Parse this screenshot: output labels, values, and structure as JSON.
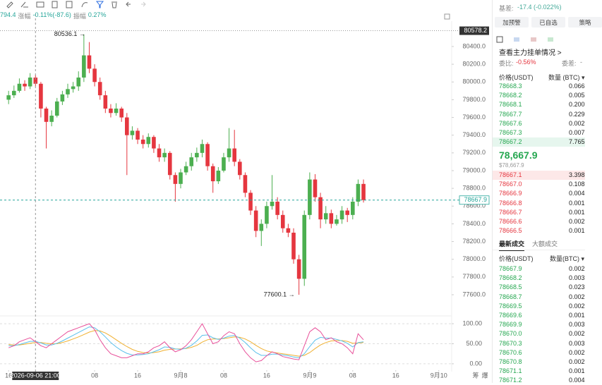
{
  "toolbar": {
    "ohlc_info": {
      "last": "794.4",
      "change_label": "涨幅",
      "change": "-0.11%(-87.6)",
      "amplitude_label": "振幅",
      "amplitude": "0.27%"
    }
  },
  "chart_data": [
    {
      "type": "candlestick",
      "x": [
        16,
        17,
        18,
        19,
        20,
        21,
        22,
        23,
        24,
        25,
        26,
        27,
        28,
        29,
        30,
        31,
        32,
        33,
        34,
        35,
        36,
        37,
        38,
        39,
        40,
        41,
        42,
        43,
        44,
        45,
        46,
        47,
        48,
        49,
        50,
        51,
        52,
        53,
        54,
        55,
        56,
        57,
        58,
        59,
        60,
        61,
        62,
        63,
        64,
        65,
        66,
        67,
        68,
        69,
        70,
        71,
        72,
        73,
        74,
        75,
        76,
        77,
        78,
        79,
        80,
        81,
        82
      ],
      "open": [
        79800,
        79850,
        79900,
        79980,
        79950,
        80050,
        79980,
        79700,
        79550,
        79620,
        79780,
        79860,
        79920,
        79950,
        80050,
        80300,
        80150,
        80000,
        79850,
        79700,
        79650,
        79700,
        79600,
        79400,
        79450,
        79350,
        79300,
        79380,
        79250,
        79150,
        79200,
        78950,
        78850,
        78980,
        79050,
        79150,
        79200,
        79300,
        79050,
        78880,
        79000,
        79150,
        79250,
        79100,
        78950,
        78750,
        78550,
        78320,
        78400,
        78600,
        78650,
        78500,
        78350,
        78300,
        78000,
        77780,
        78500,
        78900,
        78700,
        78450,
        78520,
        78400,
        78450,
        78550,
        78500,
        78650,
        78850
      ],
      "high": [
        79900,
        79960,
        80040,
        80020,
        80100,
        80080,
        80000,
        79720,
        79680,
        79820,
        79900,
        79980,
        80000,
        80120,
        80536.1,
        80450,
        80200,
        80050,
        79900,
        79750,
        79760,
        79720,
        79650,
        79500,
        79480,
        79400,
        79420,
        79400,
        79300,
        79250,
        79220,
        78980,
        79020,
        79100,
        79200,
        79260,
        79350,
        79320,
        79080,
        79040,
        79200,
        79480,
        79460,
        79130,
        78980,
        78780,
        78600,
        78450,
        78650,
        78950,
        78700,
        78550,
        78400,
        78350,
        78050,
        78550,
        78980,
        78960,
        78750,
        78600,
        78560,
        78500,
        78600,
        78580,
        78700,
        78900,
        78900
      ],
      "low": [
        79750,
        79820,
        79880,
        79900,
        79920,
        79950,
        79600,
        79250,
        79500,
        79600,
        79740,
        79820,
        79880,
        79900,
        80000,
        80100,
        79950,
        79800,
        79650,
        79600,
        79620,
        79550,
        78950,
        79350,
        79300,
        79250,
        79260,
        79200,
        79100,
        79100,
        78900,
        78650,
        78800,
        78950,
        79000,
        79100,
        79150,
        79000,
        78750,
        78850,
        78980,
        79100,
        79050,
        78900,
        78700,
        78500,
        78250,
        78150,
        78350,
        78560,
        78450,
        78300,
        78250,
        77950,
        77600.1,
        77700,
        78450,
        78650,
        78350,
        78400,
        78350,
        78380,
        78400,
        78420,
        78450,
        78600,
        78640
      ],
      "close": [
        79850,
        79900,
        79980,
        79950,
        80050,
        79980,
        79700,
        79550,
        79620,
        79780,
        79860,
        79920,
        79950,
        80050,
        80300,
        80150,
        80000,
        79850,
        79700,
        79650,
        79700,
        79600,
        79400,
        79450,
        79350,
        79300,
        79380,
        79250,
        79150,
        79200,
        78950,
        78850,
        78980,
        79050,
        79150,
        79200,
        79300,
        79050,
        78880,
        79000,
        79150,
        79250,
        79100,
        78950,
        78750,
        78550,
        78320,
        78400,
        78600,
        78650,
        78500,
        78350,
        78300,
        78000,
        77780,
        78500,
        78900,
        78700,
        78450,
        78520,
        78400,
        78450,
        78550,
        78500,
        78650,
        78850,
        78667.9
      ],
      "up_color": "#4caf50",
      "down_color": "#e5363f",
      "xlim": [
        14.4,
        98.4
      ],
      "xticks": [
        {
          "value": 16,
          "label": "16"
        },
        {
          "value": 32,
          "label": "08"
        },
        {
          "value": 40,
          "label": "16"
        },
        {
          "value": 48,
          "label": "9月8"
        },
        {
          "value": 56,
          "label": "08"
        },
        {
          "value": 64,
          "label": "16"
        },
        {
          "value": 72,
          "label": "9月9"
        },
        {
          "value": 80,
          "label": "08"
        },
        {
          "value": 88,
          "label": "16"
        },
        {
          "value": 96,
          "label": "9月10"
        }
      ],
      "ylim": [
        77425,
        80686
      ],
      "yticks": [
        {
          "value": 77600,
          "label": "77600.0"
        },
        {
          "value": 77800,
          "label": "77800.0"
        },
        {
          "value": 78000,
          "label": "78000.0"
        },
        {
          "value": 78200,
          "label": "78200.0"
        },
        {
          "value": 78400,
          "label": "78400.0"
        },
        {
          "value": 78600,
          "label": "78600.0"
        },
        {
          "value": 78800,
          "label": "78800.0"
        },
        {
          "value": 79000,
          "label": "79000.0"
        },
        {
          "value": 79200,
          "label": "79200.0"
        },
        {
          "value": 79400,
          "label": "79400.0"
        },
        {
          "value": 79600,
          "label": "79600.0"
        },
        {
          "value": 79800,
          "label": "79800.0"
        },
        {
          "value": 80000,
          "label": "80000.0"
        },
        {
          "value": 80200,
          "label": "80200.0"
        },
        {
          "value": 80400,
          "label": "80400.0"
        }
      ],
      "high_label": "80536.1 →",
      "low_label": "77600.1 →",
      "crosshair": {
        "x": 21,
        "time": "2026-09-06 21:00",
        "price": 80578.2
      },
      "grid": false
    },
    {
      "type": "line",
      "x": [
        16,
        17,
        18,
        19,
        20,
        21,
        22,
        23,
        24,
        25,
        26,
        27,
        28,
        29,
        30,
        31,
        32,
        33,
        34,
        35,
        36,
        37,
        38,
        39,
        40,
        41,
        42,
        43,
        44,
        45,
        46,
        47,
        48,
        49,
        50,
        51,
        52,
        53,
        54,
        55,
        56,
        57,
        58,
        59,
        60,
        61,
        62,
        63,
        64,
        65,
        66,
        67,
        68,
        69,
        70,
        71,
        72,
        73,
        74,
        75,
        76,
        77,
        78,
        79,
        80,
        81,
        82
      ],
      "xlim": [
        14.4,
        98.4
      ],
      "ylim": [
        -16,
        116
      ],
      "yticks": [
        {
          "value": 0,
          "label": "0.00"
        },
        {
          "value": 50,
          "label": "50.00"
        },
        {
          "value": 100,
          "label": "100.00"
        }
      ],
      "grid": true,
      "series": [
        {
          "color": "#f0b030",
          "values": [
            48,
            47,
            47,
            49,
            51,
            53,
            53,
            51,
            50,
            50,
            53,
            57,
            62,
            67,
            73,
            79,
            83,
            82,
            77,
            69,
            60,
            51,
            43,
            36,
            31,
            28,
            27,
            28,
            30,
            34,
            36,
            37,
            37,
            38,
            41,
            46,
            54,
            60,
            62,
            62,
            63,
            65,
            67,
            66,
            62,
            55,
            46,
            38,
            32,
            29,
            27,
            25,
            23,
            21,
            19,
            21,
            28,
            38,
            47,
            53,
            57,
            58,
            58,
            56,
            51,
            52,
            53
          ]
        },
        {
          "color": "#5bc0eb",
          "values": [
            45,
            45,
            48,
            52,
            56,
            56,
            52,
            47,
            47,
            51,
            57,
            64,
            71,
            78,
            85,
            92,
            90,
            80,
            67,
            53,
            42,
            33,
            26,
            22,
            22,
            23,
            25,
            30,
            35,
            42,
            41,
            37,
            36,
            39,
            46,
            57,
            71,
            72,
            65,
            61,
            64,
            69,
            71,
            64,
            53,
            40,
            28,
            21,
            21,
            24,
            24,
            22,
            20,
            17,
            15,
            25,
            43,
            59,
            66,
            64,
            64,
            61,
            57,
            51,
            42,
            53,
            55
          ]
        },
        {
          "color": "#e8509a",
          "values": [
            40,
            45,
            55,
            60,
            65,
            55,
            45,
            40,
            50,
            60,
            70,
            80,
            85,
            90,
            95,
            100,
            85,
            60,
            40,
            25,
            20,
            15,
            15,
            20,
            25,
            25,
            30,
            40,
            45,
            55,
            40,
            30,
            35,
            45,
            60,
            80,
            100,
            75,
            50,
            55,
            70,
            80,
            75,
            50,
            30,
            15,
            5,
            8,
            20,
            30,
            25,
            18,
            15,
            12,
            10,
            45,
            80,
            90,
            80,
            60,
            65,
            55,
            50,
            40,
            25,
            75,
            60
          ]
        }
      ]
    }
  ],
  "axis_corner": [
    "筹",
    "爆"
  ],
  "order_panel": {
    "basis_label": "基差:",
    "basis": "-17.4 (-0.022%)",
    "buttons": [
      "加预警",
      "已自选",
      "策略"
    ],
    "depth_link": "查看主力挂单情况 >",
    "ratio_label": "委比:",
    "ratio": "-0.56%",
    "diff_label": "委差:",
    "diff": "-",
    "book_header": [
      "价格(USDT)",
      "数量 (BTC) ▾"
    ],
    "asks": [
      [
        "78668.3",
        "0.066"
      ],
      [
        "78668.2",
        "0.005"
      ],
      [
        "78668.1",
        "0.200"
      ],
      [
        "78667.7",
        "0.229"
      ],
      [
        "78667.6",
        "0.002"
      ],
      [
        "78667.3",
        "0.007"
      ],
      [
        "78667.2",
        "7.765"
      ]
    ],
    "last_price": "78,667.9",
    "last_price_usd": "$78,667.9",
    "bids": [
      [
        "78667.1",
        "3.398"
      ],
      [
        "78667.0",
        "0.108"
      ],
      [
        "78666.9",
        "0.004"
      ],
      [
        "78666.8",
        "0.001"
      ],
      [
        "78666.7",
        "0.001"
      ],
      [
        "78666.6",
        "0.002"
      ],
      [
        "78666.5",
        "0.001"
      ]
    ],
    "tabs": [
      "最新成交",
      "大额成交"
    ],
    "trades_header": [
      "价格(USDT)",
      "数量(BTC) ▾"
    ],
    "trades": [
      [
        "78667.9",
        "0.002"
      ],
      [
        "78668.2",
        "0.003"
      ],
      [
        "78668.5",
        "0.023"
      ],
      [
        "78668.7",
        "0.002"
      ],
      [
        "78669.5",
        "0.002"
      ],
      [
        "78669.6",
        "0.001"
      ],
      [
        "78669.9",
        "0.003"
      ],
      [
        "78670.0",
        "0.002"
      ],
      [
        "78670.3",
        "0.003"
      ],
      [
        "78670.6",
        "0.002"
      ],
      [
        "78670.8",
        "0.002"
      ],
      [
        "78671.1",
        "0.001"
      ],
      [
        "78671.2",
        "0.004"
      ]
    ]
  }
}
